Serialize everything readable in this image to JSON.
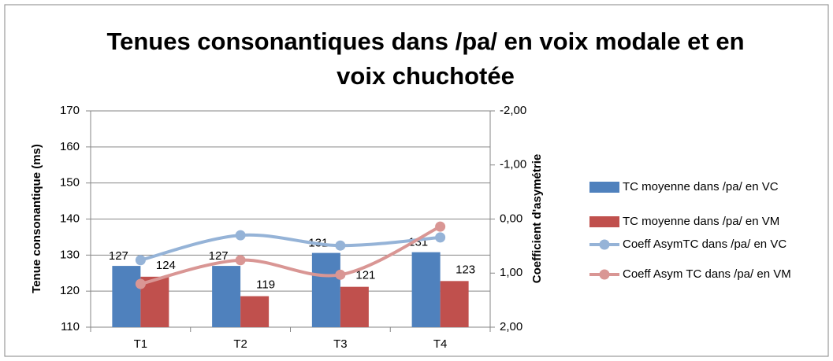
{
  "chart_data": {
    "type": "bar",
    "title": [
      "Tenues consonantiques dans /pa/ en voix modale et en",
      "voix chuchotée"
    ],
    "ylabel": "Tenue consonantique (ms)",
    "y2label": "Coefficient d'asymétrie",
    "categories": [
      "T1",
      "T2",
      "T3",
      "T4"
    ],
    "ylim": [
      110,
      170
    ],
    "yticks": [
      110,
      120,
      130,
      140,
      150,
      160,
      170
    ],
    "y2lim": [
      -2,
      2
    ],
    "y2_inverted": true,
    "y2ticks": [
      {
        "value": -2,
        "label": "-2,00"
      },
      {
        "value": -1,
        "label": "-1,00"
      },
      {
        "value": 0,
        "label": "0,00"
      },
      {
        "value": 1,
        "label": "1,00"
      },
      {
        "value": 2,
        "label": "2,00"
      }
    ],
    "grid": true,
    "legend": "right",
    "series": [
      {
        "name": "TC moyenne dans /pa/ en VC",
        "type": "bar",
        "color": "#4f81bd",
        "values": [
          127,
          127,
          130.6,
          130.8
        ],
        "value_labels": [
          "127",
          "127",
          "131",
          "131"
        ]
      },
      {
        "name": "TC moyenne dans /pa/ en VM",
        "type": "bar",
        "color": "#c0504d",
        "values": [
          124,
          118.6,
          121.2,
          122.8
        ],
        "value_labels": [
          "124",
          "119",
          "121",
          "123"
        ]
      },
      {
        "name": "Coeff AsymTC dans /pa/ en VC",
        "type": "line",
        "axis": "y2",
        "color": "#95b3d7",
        "values": [
          0.76,
          0.3,
          0.49,
          0.34
        ]
      },
      {
        "name": "Coeff Asym TC dans /pa/ en VM",
        "type": "line",
        "axis": "y2",
        "color": "#d99694",
        "values": [
          1.2,
          0.76,
          1.03,
          0.14
        ]
      }
    ]
  }
}
